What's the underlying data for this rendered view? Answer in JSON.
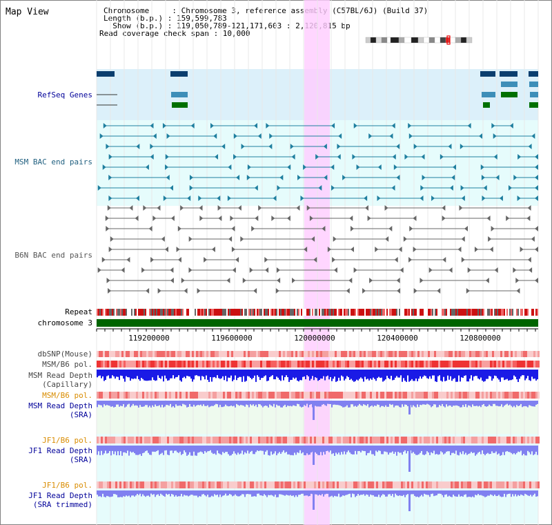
{
  "view_title": "Map View",
  "header": {
    "chromosome_line": "Chromosome     : Chromosome 3, reference assembly (C57BL/6J) (Build 37)",
    "length_line": "Length (b.p.) : 159,599,783",
    "show_line": "  Show (b.p.) : 119,050,789-121,171,603 : 2,120,815 bp",
    "coverage_line": "Read coverage check span : 10,000"
  },
  "track_labels": {
    "refseq": "RefSeq Genes",
    "msm_bac": "MSM BAC end pairs",
    "b6n_bac": "B6N BAC end pairs",
    "repeat": "Repeat",
    "chromosome": "chromosome 3",
    "dbsnp": "dbSNP(Mouse)",
    "msm_b6_pol": "MSM/B6 pol.",
    "msm_depth_cap": "MSM Read Depth\n(Capillary)",
    "msm_b6_pol2": "MSM/B6 pol.",
    "msm_depth_sra": "MSM Read Depth\n(SRA)",
    "jf1_b6_pol": "JF1/B6 pol.",
    "jf1_depth_sra": "JF1 Read Depth\n(SRA)",
    "jf1_b6_pol2": "JF1/B6 pol.",
    "jf1_depth_trim": "JF1 Read Depth\n(SRA trimmed)"
  },
  "ruler_ticks": [
    "119200000",
    "119600000",
    "120000000",
    "120400000",
    "120800000"
  ],
  "colors": {
    "refseq_bg": "#dcf0fa",
    "bac_bg": "#e6fcfc",
    "highlight": "#ffccff",
    "msm_label": "#1f5f7f",
    "b6n_label": "#555555",
    "navy_label": "#000099",
    "orange_label": "#d98c00",
    "chrom_bar": "#006400"
  }
}
